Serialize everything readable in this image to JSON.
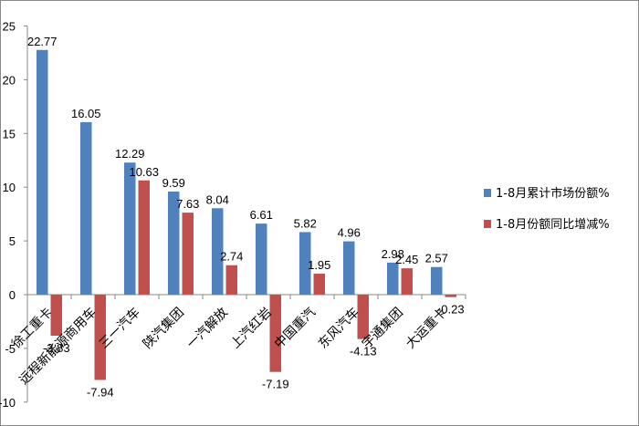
{
  "chart_data": {
    "type": "bar",
    "title": "",
    "xlabel": "",
    "ylabel": "",
    "categories": [
      "徐工重卡",
      "远程新能源商用车",
      "三一汽车",
      "陕汽集团",
      "一汽解放",
      "上汽红岩",
      "中国重汽",
      "东风汽车",
      "宇通集团",
      "大运重卡"
    ],
    "series": [
      {
        "name": "1-8月累计市场份额%",
        "color": "#4f81bd",
        "values": [
          22.77,
          16.05,
          12.29,
          9.59,
          8.04,
          6.61,
          5.82,
          4.96,
          2.98,
          2.57
        ]
      },
      {
        "name": "1-8月份额同比增减%",
        "color": "#c0504d",
        "values": [
          -3.83,
          -7.94,
          10.63,
          7.63,
          2.74,
          -7.19,
          1.95,
          -4.13,
          2.45,
          -0.23
        ]
      }
    ],
    "ylim": [
      -10,
      25
    ],
    "yticks": [
      -10,
      -5,
      0,
      5,
      10,
      15,
      20,
      25
    ],
    "grid": false,
    "legend_position": "right"
  }
}
